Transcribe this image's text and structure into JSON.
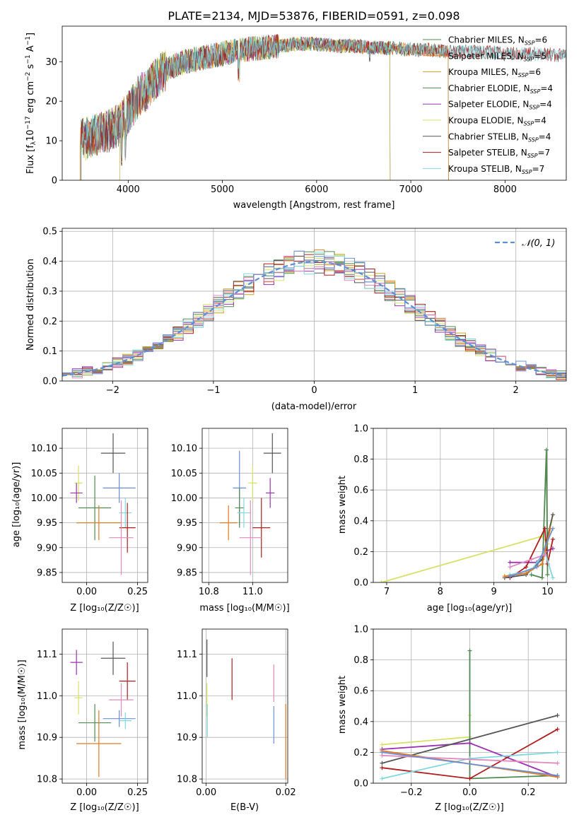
{
  "figure_title": "PLATE=2134, MJD=53876, FIBERID=0591, z=0.098",
  "legend_colors": [
    "#4d8c4d",
    "#e07a20",
    "#c9a227",
    "#508a50",
    "#9b30b0",
    "#d8e066",
    "#555555",
    "#b01c1c",
    "#7fd8df"
  ],
  "gauss_color": "#5b8fd6",
  "chart_data": [
    {
      "id": "spectrum",
      "type": "line",
      "title": "PLATE=2134, MJD=53876, FIBERID=0591, z=0.098",
      "xlabel": "wavelength [Angstrom, rest frame]",
      "ylabel_main": "Flux [f",
      "ylabel_sub": "λ",
      "ylabel_rest": "10",
      "ylabel_exp1": "−17",
      "ylabel_mid": " erg cm",
      "ylabel_exp2": "−2",
      "ylabel_mid2": " s",
      "ylabel_exp3": "−1",
      "ylabel_end": " A",
      "ylabel_exp4": "−1",
      "ylabel_tail": "]",
      "xlim": [
        3300,
        8650
      ],
      "ylim": [
        0,
        39
      ],
      "xticks": [
        "4000",
        "5000",
        "6000",
        "7000",
        "8000"
      ],
      "yticks": [
        "0",
        "10",
        "20",
        "30"
      ],
      "grid": false,
      "legend_position": "top-right",
      "continuum": {
        "x": [
          3480,
          3600,
          3700,
          3800,
          3900,
          4000,
          4100,
          4200,
          4300,
          4400,
          4600,
          4800,
          5000,
          5200,
          5400,
          5600,
          5800,
          6000,
          6200,
          6400,
          6600,
          6800,
          7000,
          7200,
          7400,
          7600,
          7800,
          8000,
          8200,
          8400,
          8600
        ],
        "y": [
          10,
          11,
          12,
          12.5,
          14,
          17,
          21,
          23,
          26,
          28,
          30,
          31,
          32,
          33,
          33.5,
          34,
          34.5,
          34.5,
          34,
          34,
          33.5,
          33.5,
          33,
          33,
          32.5,
          32.5,
          32.5,
          32,
          32,
          32,
          31.5
        ]
      },
      "series": [
        {
          "name_main": "Chabrier MILES, N",
          "name_sub": "SSP",
          "name_end": "=6",
          "color": "#4d8c4d",
          "x_start": 3490,
          "x_end": 7400
        },
        {
          "name_main": "Salpeter MILES, N",
          "name_sub": "SSP",
          "name_end": "=5",
          "color": "#e07a20",
          "x_start": 3490,
          "x_end": 7400
        },
        {
          "name_main": "Kroupa MILES, N",
          "name_sub": "SSP",
          "name_end": "=6",
          "color": "#c9a227",
          "x_start": 3910,
          "x_end": 6780
        },
        {
          "name_main": "Chabrier ELODIE, N",
          "name_sub": "SSP",
          "name_end": "=4",
          "color": "#508a50",
          "x_start": 3500,
          "x_end": 6780
        },
        {
          "name_main": "Salpeter ELODIE, N",
          "name_sub": "SSP",
          "name_end": "=4",
          "color": "#9b30b0",
          "x_start": 3500,
          "x_end": 6780
        },
        {
          "name_main": "Kroupa ELODIE, N",
          "name_sub": "SSP",
          "name_end": "=4",
          "color": "#d8e066",
          "x_start": 3500,
          "x_end": 6780
        },
        {
          "name_main": "Chabrier STELIB, N",
          "name_sub": "SSP",
          "name_end": "=4",
          "color": "#555555",
          "x_start": 3500,
          "x_end": 8650
        },
        {
          "name_main": "Salpeter STELIB, N",
          "name_sub": "SSP",
          "name_end": "=7",
          "color": "#b01c1c",
          "x_start": 3500,
          "x_end": 8650
        },
        {
          "name_main": "Kroupa STELIB, N",
          "name_sub": "SSP",
          "name_end": "=7",
          "color": "#7fd8df",
          "x_start": 3500,
          "x_end": 8650
        }
      ]
    },
    {
      "id": "residuals",
      "type": "step",
      "xlabel": "(data-model)/error",
      "ylabel": "Normed distribution",
      "xlim": [
        -2.5,
        2.5
      ],
      "ylim": [
        0,
        0.51
      ],
      "xticks": [
        "−2",
        "−1",
        "0",
        "1",
        "2"
      ],
      "xtick_values": [
        -2,
        -1,
        0,
        1,
        2
      ],
      "yticks": [
        "0.0",
        "0.1",
        "0.2",
        "0.3",
        "0.4",
        "0.5"
      ],
      "ytick_values": [
        0,
        0.1,
        0.2,
        0.3,
        0.4,
        0.5
      ],
      "grid": true,
      "legend_position": "top-right",
      "legend_label": "𝒩(0, 1)",
      "bin_width": 0.1
    },
    {
      "id": "age-vs-Z",
      "type": "errorbar",
      "xlabel": "Z [log₁₀(Z/Z☉)]",
      "ylabel": "age  [log₁₀(age/yr)]",
      "xlim": [
        -0.12,
        0.3
      ],
      "ylim": [
        9.83,
        10.14
      ],
      "xticks": [
        "0.00",
        "0.25"
      ],
      "xtick_values": [
        0,
        0.25
      ],
      "yticks": [
        "9.85",
        "9.90",
        "9.95",
        "10.00",
        "10.05",
        "10.10"
      ],
      "ytick_values": [
        9.85,
        9.9,
        9.95,
        10.0,
        10.05,
        10.1
      ],
      "grid": true,
      "points": [
        {
          "x": 0.13,
          "y": 10.09,
          "xerr": 0.06,
          "yerr": 0.04,
          "color": "#555555"
        },
        {
          "x": -0.04,
          "y": 10.03,
          "xerr": 0.02,
          "yerr": 0.035,
          "color": "#d8e066"
        },
        {
          "x": -0.05,
          "y": 10.01,
          "xerr": 0.03,
          "yerr": 0.02,
          "color": "#9b30b0"
        },
        {
          "x": 0.16,
          "y": 10.02,
          "xerr": 0.08,
          "yerr": 0.03,
          "color": "#6b8fd6"
        },
        {
          "x": 0.04,
          "y": 9.98,
          "xerr": 0.08,
          "yerr": 0.065,
          "color": "#508a50"
        },
        {
          "x": 0.19,
          "y": 9.97,
          "xerr": 0.03,
          "yerr": 0.03,
          "color": "#7fd8df"
        },
        {
          "x": 0.06,
          "y": 9.95,
          "xerr": 0.11,
          "yerr": 0.035,
          "color": "#e07a20"
        },
        {
          "x": 0.2,
          "y": 9.94,
          "xerr": 0.04,
          "yerr": 0.05,
          "color": "#b01c1c"
        },
        {
          "x": 0.17,
          "y": 9.92,
          "xerr": 0.06,
          "yerr": 0.075,
          "color": "#e08ac0"
        }
      ]
    },
    {
      "id": "age-vs-mass",
      "type": "errorbar",
      "xlabel": "mass [log₁₀(M/M☉)]",
      "ylabel": "",
      "xlim": [
        10.77,
        11.16
      ],
      "ylim": [
        9.83,
        10.14
      ],
      "xticks": [
        "10.8",
        "11.0"
      ],
      "xtick_values": [
        10.8,
        11.0
      ],
      "yticks": [
        "9.85",
        "9.90",
        "9.95",
        "10.00",
        "10.05",
        "10.10"
      ],
      "ytick_values": [
        9.85,
        9.9,
        9.95,
        10.0,
        10.05,
        10.1
      ],
      "grid": true,
      "points": [
        {
          "x": 11.09,
          "y": 10.09,
          "xerr": 0.04,
          "yerr": 0.04,
          "color": "#555555"
        },
        {
          "x": 11.0,
          "y": 10.03,
          "xerr": 0.02,
          "yerr": 0.035,
          "color": "#d8e066"
        },
        {
          "x": 11.08,
          "y": 10.01,
          "xerr": 0.02,
          "yerr": 0.03,
          "color": "#9b30b0"
        },
        {
          "x": 10.94,
          "y": 10.02,
          "xerr": 0.03,
          "yerr": 0.075,
          "color": "#6b8fd6"
        },
        {
          "x": 10.94,
          "y": 9.98,
          "xerr": 0.02,
          "yerr": 0.04,
          "color": "#508a50"
        },
        {
          "x": 10.96,
          "y": 9.97,
          "xerr": 0.03,
          "yerr": 0.03,
          "color": "#7fd8df"
        },
        {
          "x": 10.89,
          "y": 9.95,
          "xerr": 0.04,
          "yerr": 0.035,
          "color": "#e07a20"
        },
        {
          "x": 11.04,
          "y": 9.94,
          "xerr": 0.04,
          "yerr": 0.06,
          "color": "#b01c1c"
        },
        {
          "x": 10.99,
          "y": 9.92,
          "xerr": 0.05,
          "yerr": 0.075,
          "color": "#e08ac0"
        }
      ]
    },
    {
      "id": "weight-vs-age",
      "type": "line",
      "xlabel": "age  [log₁₀(age/yr)]",
      "ylabel": "mass weight",
      "xlim": [
        6.75,
        10.35
      ],
      "ylim": [
        0,
        1
      ],
      "xticks": [
        "7",
        "8",
        "9",
        "10"
      ],
      "xtick_values": [
        7,
        8,
        9,
        10
      ],
      "yticks": [
        "0.0",
        "0.2",
        "0.4",
        "0.6",
        "0.8",
        "1.0"
      ],
      "ytick_values": [
        0,
        0.2,
        0.4,
        0.6,
        0.8,
        1.0
      ],
      "grid": true,
      "series": [
        {
          "color": "#d8e066",
          "x": [
            6.9,
            9.9,
            10.0,
            10.1
          ],
          "y": [
            0.0,
            0.3,
            0.25,
            0.44
          ]
        },
        {
          "color": "#508a50",
          "x": [
            9.7,
            9.9,
            9.98,
            10.0
          ],
          "y": [
            0.05,
            0.03,
            0.86,
            0.05
          ]
        },
        {
          "color": "#9b30b0",
          "x": [
            9.3,
            9.8,
            9.95,
            10.1
          ],
          "y": [
            0.13,
            0.13,
            0.2,
            0.22
          ]
        },
        {
          "color": "#b01c1c",
          "x": [
            9.3,
            9.6,
            9.95,
            10.0,
            10.1
          ],
          "y": [
            0.03,
            0.1,
            0.35,
            0.12,
            0.28
          ]
        },
        {
          "color": "#555555",
          "x": [
            9.2,
            9.6,
            9.9,
            10.1
          ],
          "y": [
            0.03,
            0.05,
            0.15,
            0.44
          ]
        },
        {
          "color": "#7fd8df",
          "x": [
            9.3,
            9.7,
            9.95,
            10.1
          ],
          "y": [
            0.05,
            0.08,
            0.2,
            0.03
          ]
        },
        {
          "color": "#e07a20",
          "x": [
            9.2,
            9.6,
            9.9,
            10.05
          ],
          "y": [
            0.04,
            0.06,
            0.12,
            0.35
          ]
        },
        {
          "color": "#e08ac0",
          "x": [
            9.3,
            9.7,
            9.95
          ],
          "y": [
            0.1,
            0.15,
            0.18
          ]
        },
        {
          "color": "#6b8fd6",
          "x": [
            9.3,
            9.8,
            10.1
          ],
          "y": [
            0.04,
            0.1,
            0.35
          ]
        }
      ]
    },
    {
      "id": "mass-vs-Z",
      "type": "errorbar",
      "xlabel": "Z [log₁₀(Z/Z☉)]",
      "ylabel": "mass [log₁₀(M/M☉)]",
      "xlim": [
        -0.12,
        0.3
      ],
      "ylim": [
        10.79,
        11.16
      ],
      "xticks": [
        "0.00",
        "0.25"
      ],
      "xtick_values": [
        0,
        0.25
      ],
      "yticks": [
        "10.8",
        "10.9",
        "11.0",
        "11.1"
      ],
      "ytick_values": [
        10.8,
        10.9,
        11.0,
        11.1
      ],
      "grid": true,
      "points": [
        {
          "x": -0.05,
          "y": 11.08,
          "xerr": 0.03,
          "yerr": 0.03,
          "color": "#9b30b0"
        },
        {
          "x": 0.13,
          "y": 11.09,
          "xerr": 0.06,
          "yerr": 0.04,
          "color": "#555555"
        },
        {
          "x": 0.2,
          "y": 11.035,
          "xerr": 0.04,
          "yerr": 0.045,
          "color": "#b01c1c"
        },
        {
          "x": -0.04,
          "y": 10.995,
          "xerr": 0.02,
          "yerr": 0.04,
          "color": "#d8e066"
        },
        {
          "x": 0.17,
          "y": 10.99,
          "xerr": 0.06,
          "yerr": 0.04,
          "color": "#e08ac0"
        },
        {
          "x": 0.16,
          "y": 10.945,
          "xerr": 0.08,
          "yerr": 0.02,
          "color": "#6b8fd6"
        },
        {
          "x": 0.19,
          "y": 10.94,
          "xerr": 0.03,
          "yerr": 0.02,
          "color": "#7fd8df"
        },
        {
          "x": 0.04,
          "y": 10.935,
          "xerr": 0.08,
          "yerr": 0.045,
          "color": "#508a50"
        },
        {
          "x": 0.06,
          "y": 10.885,
          "xerr": 0.11,
          "yerr": 0.08,
          "color": "#e07a20"
        }
      ]
    },
    {
      "id": "mass-vs-ebv",
      "type": "errorbar",
      "xlabel": "E(B-V)",
      "ylabel": "",
      "xlim": [
        -0.001,
        0.0205
      ],
      "ylim": [
        10.79,
        11.16
      ],
      "xticks": [
        "0.00",
        "0.02"
      ],
      "xtick_values": [
        0,
        0.02
      ],
      "yticks": [
        "10.8",
        "10.9",
        "11.0",
        "11.1"
      ],
      "ytick_values": [
        10.8,
        10.9,
        11.0,
        11.1
      ],
      "grid": true,
      "points": [
        {
          "x": 0.0002,
          "y": 11.09,
          "xerr": 0,
          "yerr": 0.045,
          "color": "#555555"
        },
        {
          "x": 0.0002,
          "y": 10.99,
          "xerr": 0,
          "yerr": 0.04,
          "color": "#d8e066"
        },
        {
          "x": 0.0003,
          "y": 10.94,
          "xerr": 0,
          "yerr": 0.04,
          "color": "#7fd8df"
        },
        {
          "x": 0.0065,
          "y": 11.04,
          "xerr": 0,
          "yerr": 0.05,
          "color": "#b01c1c"
        },
        {
          "x": 0.017,
          "y": 11.03,
          "xerr": 0,
          "yerr": 0.045,
          "color": "#e08ac0"
        },
        {
          "x": 0.017,
          "y": 10.93,
          "xerr": 0,
          "yerr": 0.045,
          "color": "#6b8fd6"
        },
        {
          "x": 0.02,
          "y": 10.89,
          "xerr": 0,
          "yerr": 0.09,
          "color": "#e07a20"
        }
      ]
    },
    {
      "id": "weight-vs-Z",
      "type": "line",
      "xlabel": "Z [log₁₀(Z/Z☉)]",
      "ylabel": "mass weight",
      "xlim": [
        -0.33,
        0.33
      ],
      "ylim": [
        0,
        1
      ],
      "xticks": [
        "−0.2",
        "0.0",
        "0.2"
      ],
      "xtick_values": [
        -0.2,
        0,
        0.2
      ],
      "yticks": [
        "0.0",
        "0.2",
        "0.4",
        "0.6",
        "0.8",
        "1.0"
      ],
      "ytick_values": [
        0,
        0.2,
        0.4,
        0.6,
        0.8,
        1.0
      ],
      "grid": true,
      "series": [
        {
          "color": "#d8e066",
          "x": [
            -0.3,
            0.0,
            0.0
          ],
          "y": [
            0.25,
            0.3,
            0.44
          ]
        },
        {
          "color": "#508a50",
          "x": [
            0.0,
            0.0,
            0.3
          ],
          "y": [
            0.86,
            0.03,
            0.05
          ]
        },
        {
          "color": "#9b30b0",
          "x": [
            -0.3,
            0.0,
            0.3
          ],
          "y": [
            0.22,
            0.26,
            0.04
          ]
        },
        {
          "color": "#b01c1c",
          "x": [
            -0.3,
            0.0,
            0.3
          ],
          "y": [
            0.1,
            0.03,
            0.35
          ]
        },
        {
          "color": "#555555",
          "x": [
            -0.3,
            0.3
          ],
          "y": [
            0.13,
            0.44
          ]
        },
        {
          "color": "#7fd8df",
          "x": [
            -0.3,
            0.0,
            0.3
          ],
          "y": [
            0.03,
            0.16,
            0.2
          ]
        },
        {
          "color": "#e07a20",
          "x": [
            -0.3,
            0.3
          ],
          "y": [
            0.21,
            0.04
          ]
        },
        {
          "color": "#e08ac0",
          "x": [
            -0.3,
            0.3
          ],
          "y": [
            0.18,
            0.13
          ]
        },
        {
          "color": "#6b8fd6",
          "x": [
            -0.3,
            0.3
          ],
          "y": [
            0.2,
            0.05
          ]
        }
      ]
    }
  ]
}
